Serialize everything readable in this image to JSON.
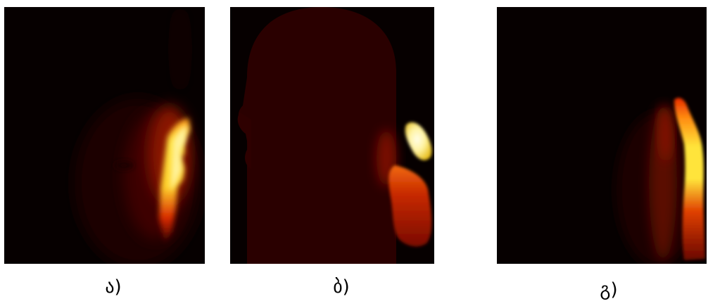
{
  "panels": [
    {
      "caption": "ა)",
      "colormap": "hot"
    },
    {
      "caption": "ბ)",
      "colormap": "hot"
    },
    {
      "caption": "გ)",
      "colormap": "hot"
    }
  ],
  "colors": {
    "background": "#060000",
    "low": "#2a0000",
    "mid": "#c41a00",
    "high": "#ffe93a",
    "peak": "#fffbe0"
  }
}
